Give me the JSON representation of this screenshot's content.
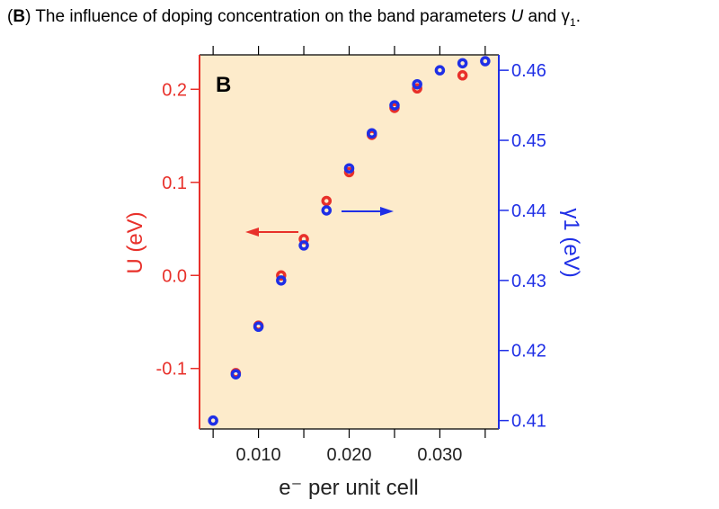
{
  "caption": {
    "label": "B",
    "text_before": "The influence of doping concentration on the band parameters ",
    "u": "U",
    "and": " and ",
    "gamma": "γ",
    "gamma_sub": "1",
    "end": "."
  },
  "chart_data": {
    "type": "scatter",
    "panel_label": "B",
    "xlabel": "e⁻ per unit cell",
    "ylabel_left": "U (eV)",
    "ylabel_right": "γ1 (eV)",
    "xlim": [
      0.0035,
      0.0365
    ],
    "ylim_left": [
      -0.165,
      0.237
    ],
    "ylim_right": [
      0.4088,
      0.4622
    ],
    "x_ticks": [
      0.01,
      0.02,
      0.03
    ],
    "x_tick_labels": [
      "0.010",
      "0.020",
      "0.030"
    ],
    "y_left_ticks": [
      -0.1,
      0.0,
      0.1,
      0.2
    ],
    "y_left_tick_labels": [
      "-0.1",
      "0.0",
      "0.1",
      "0.2"
    ],
    "y_right_ticks": [
      0.41,
      0.42,
      0.43,
      0.44,
      0.45,
      0.46
    ],
    "y_right_tick_labels": [
      "0.41",
      "0.42",
      "0.43",
      "0.44",
      "0.45",
      "0.46"
    ],
    "background": "#fdebcb",
    "series": [
      {
        "name": "U",
        "axis": "left",
        "color": "#e8302a",
        "x": [
          0.0075,
          0.01,
          0.0125,
          0.015,
          0.0175,
          0.02,
          0.0225,
          0.025,
          0.0275,
          0.0325
        ],
        "y": [
          -0.105,
          -0.054,
          0.0,
          0.039,
          0.08,
          0.111,
          0.151,
          0.18,
          0.201,
          0.215
        ]
      },
      {
        "name": "γ1",
        "axis": "right",
        "color": "#1f2fe6",
        "x": [
          0.005,
          0.0075,
          0.01,
          0.0125,
          0.015,
          0.0175,
          0.02,
          0.0225,
          0.025,
          0.0275,
          0.03,
          0.0325,
          0.035
        ],
        "y": [
          0.41,
          0.4166,
          0.4234,
          0.43,
          0.435,
          0.44,
          0.446,
          0.451,
          0.455,
          0.458,
          0.46,
          0.461,
          0.4613
        ]
      }
    ]
  }
}
